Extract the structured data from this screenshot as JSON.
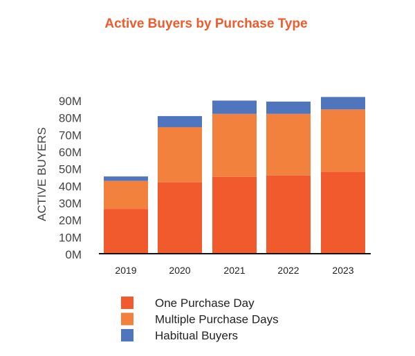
{
  "chart_data": {
    "type": "bar",
    "stacked": true,
    "title": "Active Buyers by Purchase Type",
    "xlabel": "",
    "ylabel": "ACTIVE BUYERS",
    "ylim": [
      0,
      90
    ],
    "yticks": [
      "0M",
      "10M",
      "20M",
      "30M",
      "40M",
      "50M",
      "60M",
      "70M",
      "80M",
      "90M"
    ],
    "categories": [
      "2019",
      "2020",
      "2021",
      "2022",
      "2023"
    ],
    "series": [
      {
        "name": "One Purchase Day",
        "color": "#F05A2C",
        "values": [
          26.3,
          41.9,
          45.1,
          45.9,
          48.0
        ]
      },
      {
        "name": "Multiple Purchase Days",
        "color": "#F3813E",
        "values": [
          16.4,
          32.3,
          36.9,
          36.1,
          36.6
        ]
      },
      {
        "name": "Habitual Buyers",
        "color": "#4F75BE",
        "values": [
          2.6,
          6.5,
          7.8,
          7.2,
          7.3
        ]
      }
    ],
    "grid": false,
    "legend": "bottom",
    "title_color": "#F05A2C"
  }
}
